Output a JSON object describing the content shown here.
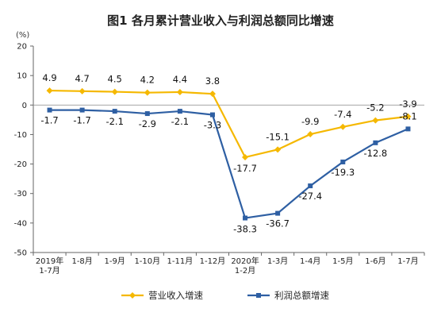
{
  "chart_data": {
    "type": "line",
    "title": "图1  各月累计营业收入与利润总额同比增速",
    "ylabel": "(%)",
    "xlabel": "",
    "ylim": [
      -50,
      20
    ],
    "yticks": [
      20,
      10,
      0,
      -10,
      -20,
      -30,
      -40,
      -50
    ],
    "categories": [
      [
        "2019年",
        "1-7月"
      ],
      [
        "1-8月"
      ],
      [
        "1-9月"
      ],
      [
        "1-10月"
      ],
      [
        "1-11月"
      ],
      [
        "1-12月"
      ],
      [
        "2020年",
        "1-2月"
      ],
      [
        "1-3月"
      ],
      [
        "1-4月"
      ],
      [
        "1-5月"
      ],
      [
        "1-6月"
      ],
      [
        "1-7月"
      ]
    ],
    "series": [
      {
        "name": "营业收入增速",
        "color": "#F5B800",
        "values": [
          4.9,
          4.7,
          4.5,
          4.2,
          4.4,
          3.8,
          -17.7,
          -15.1,
          -9.9,
          -7.4,
          -5.2,
          -3.9
        ],
        "labels": [
          "4.9",
          "4.7",
          "4.5",
          "4.2",
          "4.4",
          "3.8",
          "-17.7",
          "-15.1",
          "-9.9",
          "-7.4",
          "-5.2",
          "-3.9"
        ]
      },
      {
        "name": "利润总额增速",
        "color": "#2E5FA3",
        "values": [
          -1.7,
          -1.7,
          -2.1,
          -2.9,
          -2.1,
          -3.3,
          -38.3,
          -36.7,
          -27.4,
          -19.3,
          -12.8,
          -8.1
        ],
        "labels": [
          "-1.7",
          "-1.7",
          "-2.1",
          "-2.9",
          "-2.1",
          "-3.3",
          "-38.3",
          "-36.7",
          "-27.4",
          "-19.3",
          "-12.8",
          "-8.1"
        ]
      }
    ],
    "grid": false,
    "legend_position": "bottom"
  }
}
